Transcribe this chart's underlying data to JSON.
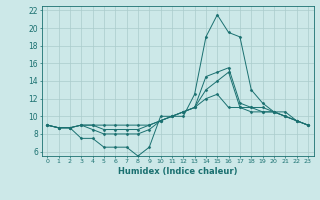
{
  "xlabel": "Humidex (Indice chaleur)",
  "xlim": [
    -0.5,
    23.5
  ],
  "ylim": [
    5.5,
    22.5
  ],
  "xticks": [
    0,
    1,
    2,
    3,
    4,
    5,
    6,
    7,
    8,
    9,
    10,
    11,
    12,
    13,
    14,
    15,
    16,
    17,
    18,
    19,
    20,
    21,
    22,
    23
  ],
  "yticks": [
    6,
    8,
    10,
    12,
    14,
    16,
    18,
    20,
    22
  ],
  "bg_color": "#cce8e8",
  "grid_color": "#aacccc",
  "line_color": "#1a7070",
  "lines": [
    {
      "x": [
        0,
        1,
        2,
        3,
        4,
        5,
        6,
        7,
        8,
        9,
        10,
        11,
        12,
        13,
        14,
        15,
        16,
        17,
        18,
        19,
        20,
        21,
        22,
        23
      ],
      "y": [
        9,
        8.7,
        8.7,
        7.5,
        7.5,
        6.5,
        6.5,
        6.5,
        5.5,
        6.5,
        10,
        10,
        10,
        12.5,
        19,
        21.5,
        19.5,
        19,
        13,
        11.5,
        10.5,
        10,
        9.5,
        9
      ]
    },
    {
      "x": [
        0,
        1,
        2,
        3,
        4,
        5,
        6,
        7,
        8,
        9,
        10,
        11,
        12,
        13,
        14,
        15,
        16,
        17,
        18,
        19,
        20,
        21,
        22,
        23
      ],
      "y": [
        9,
        8.7,
        8.7,
        9,
        8.5,
        8,
        8,
        8,
        8,
        8.5,
        9.5,
        10,
        10.5,
        11,
        14.5,
        15,
        15.5,
        11.5,
        11,
        10.5,
        10.5,
        10.5,
        9.5,
        9
      ]
    },
    {
      "x": [
        0,
        1,
        2,
        3,
        4,
        5,
        6,
        7,
        8,
        9,
        10,
        11,
        12,
        13,
        14,
        15,
        16,
        17,
        18,
        19,
        20,
        21,
        22,
        23
      ],
      "y": [
        9,
        8.7,
        8.7,
        9,
        9,
        8.5,
        8.5,
        8.5,
        8.5,
        9,
        9.5,
        10,
        10.5,
        11,
        13,
        14,
        15,
        11,
        10.5,
        10.5,
        10.5,
        10,
        9.5,
        9
      ]
    },
    {
      "x": [
        0,
        1,
        2,
        3,
        4,
        5,
        6,
        7,
        8,
        9,
        10,
        11,
        12,
        13,
        14,
        15,
        16,
        17,
        18,
        19,
        20,
        21,
        22,
        23
      ],
      "y": [
        9,
        8.7,
        8.7,
        9,
        9,
        9,
        9,
        9,
        9,
        9,
        9.5,
        10,
        10.5,
        11,
        12,
        12.5,
        11,
        11,
        11,
        11,
        10.5,
        10,
        9.5,
        9
      ]
    }
  ]
}
